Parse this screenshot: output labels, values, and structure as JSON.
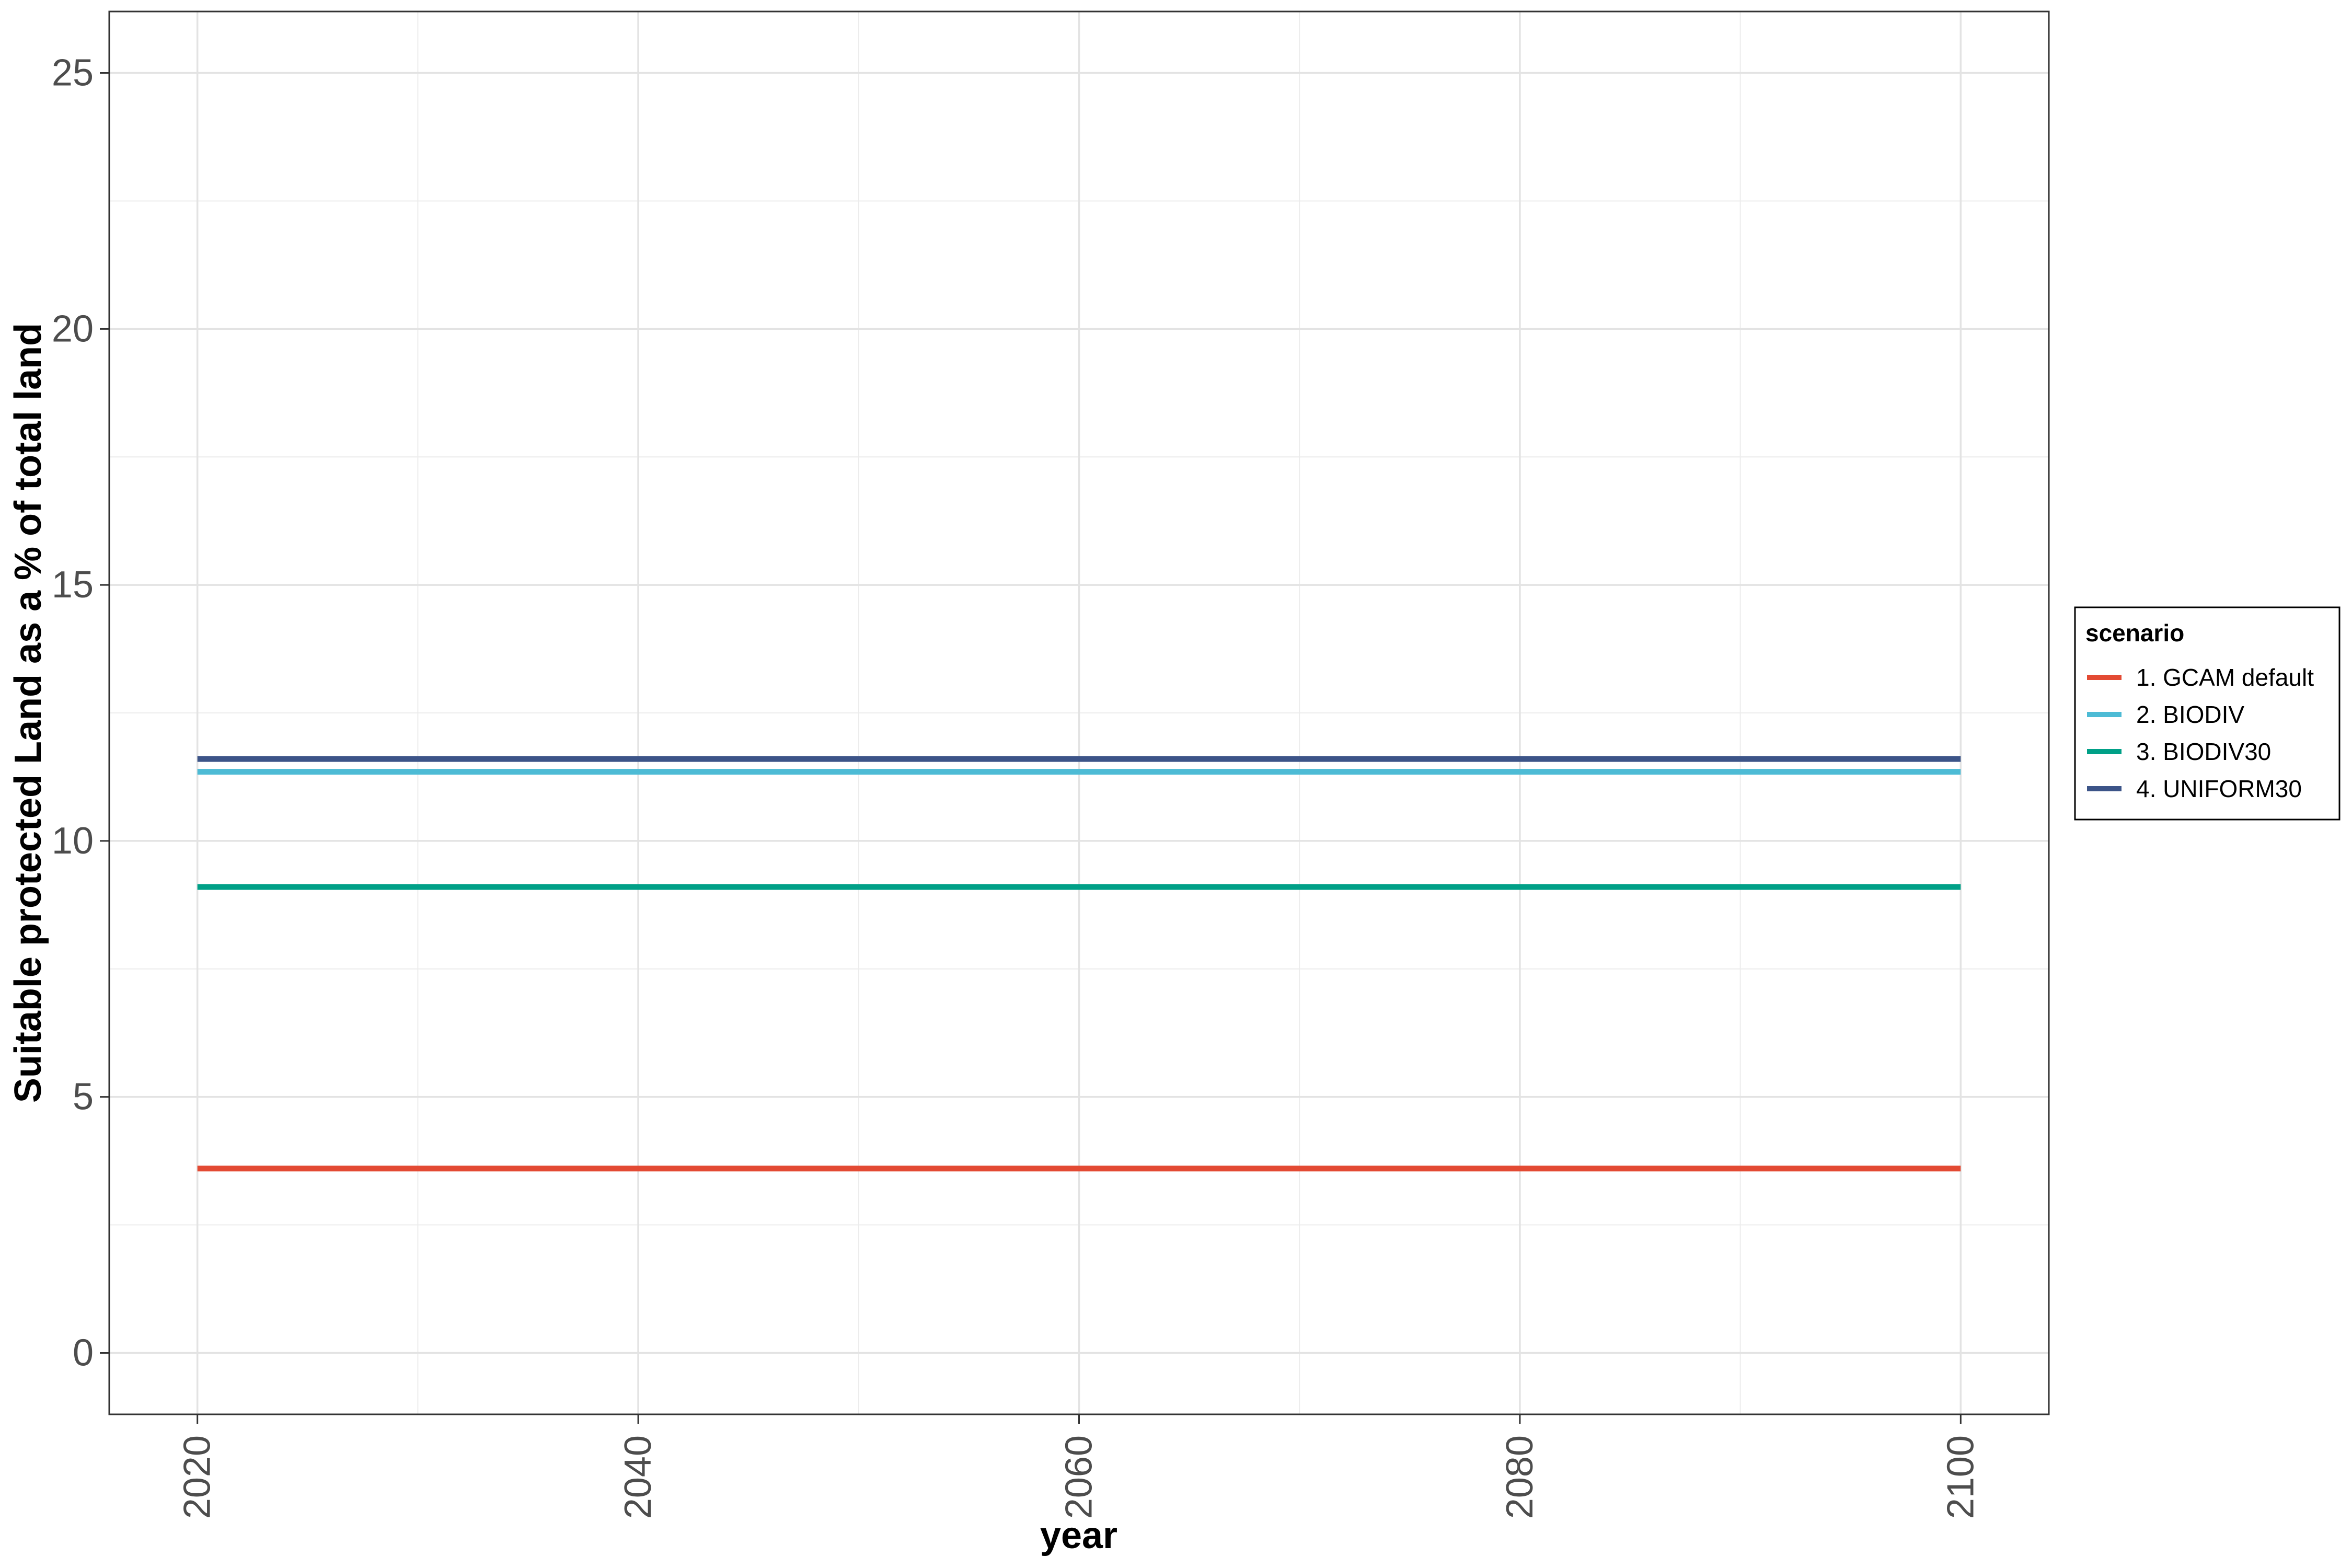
{
  "chart_data": {
    "type": "line",
    "xlabel": "year",
    "ylabel": "Suitable protected Land as a % of total land",
    "xlim": [
      2016,
      2104
    ],
    "ylim": [
      -1.2,
      26.2
    ],
    "x_ticks": [
      2020,
      2040,
      2060,
      2080,
      2100
    ],
    "y_ticks": [
      0,
      5,
      10,
      15,
      20,
      25
    ],
    "x_tick_labels": [
      "2020",
      "2040",
      "2060",
      "2080",
      "2100"
    ],
    "y_tick_labels": [
      "0",
      "5",
      "10",
      "15",
      "20",
      "25"
    ],
    "x_minor_ticks": [
      2030,
      2050,
      2070,
      2090
    ],
    "y_minor_ticks": [
      2.5,
      7.5,
      12.5,
      17.5,
      22.5
    ],
    "grid": true,
    "legend": {
      "title": "scenario",
      "placement": "right"
    },
    "series": [
      {
        "name": "1. GCAM default",
        "color": "#E34A33",
        "x": [
          2020,
          2100
        ],
        "y": [
          3.6,
          3.6
        ]
      },
      {
        "name": "2. BIODIV",
        "color": "#4DBBD5",
        "x": [
          2020,
          2100
        ],
        "y": [
          11.35,
          11.35
        ]
      },
      {
        "name": "3. BIODIV30",
        "color": "#00A087",
        "x": [
          2020,
          2100
        ],
        "y": [
          9.1,
          9.1
        ]
      },
      {
        "name": "4. UNIFORM30",
        "color": "#3C5488",
        "x": [
          2020,
          2100
        ],
        "y": [
          11.6,
          11.6
        ]
      }
    ]
  }
}
